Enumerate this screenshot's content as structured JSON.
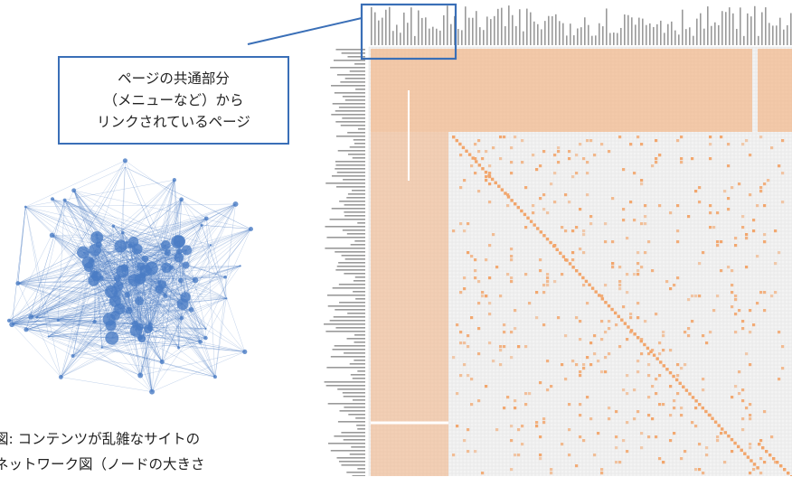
{
  "callout": {
    "lines": [
      "ページの共通部分",
      "（メニューなど）から",
      "リンクされているページ"
    ]
  },
  "caption": {
    "lines": [
      "図: コンテンツが乱雑なサイトの",
      "ネットワーク図（ノードの大きさ"
    ]
  },
  "colors": {
    "accent": "#3a6fb7",
    "network": "#4a7cc4",
    "matrix_link": "#f2a56b",
    "matrix_bg": "#f3f3f3"
  },
  "icons": {
    "network": "network-graph-icon",
    "matrix": "adjacency-matrix-icon"
  }
}
